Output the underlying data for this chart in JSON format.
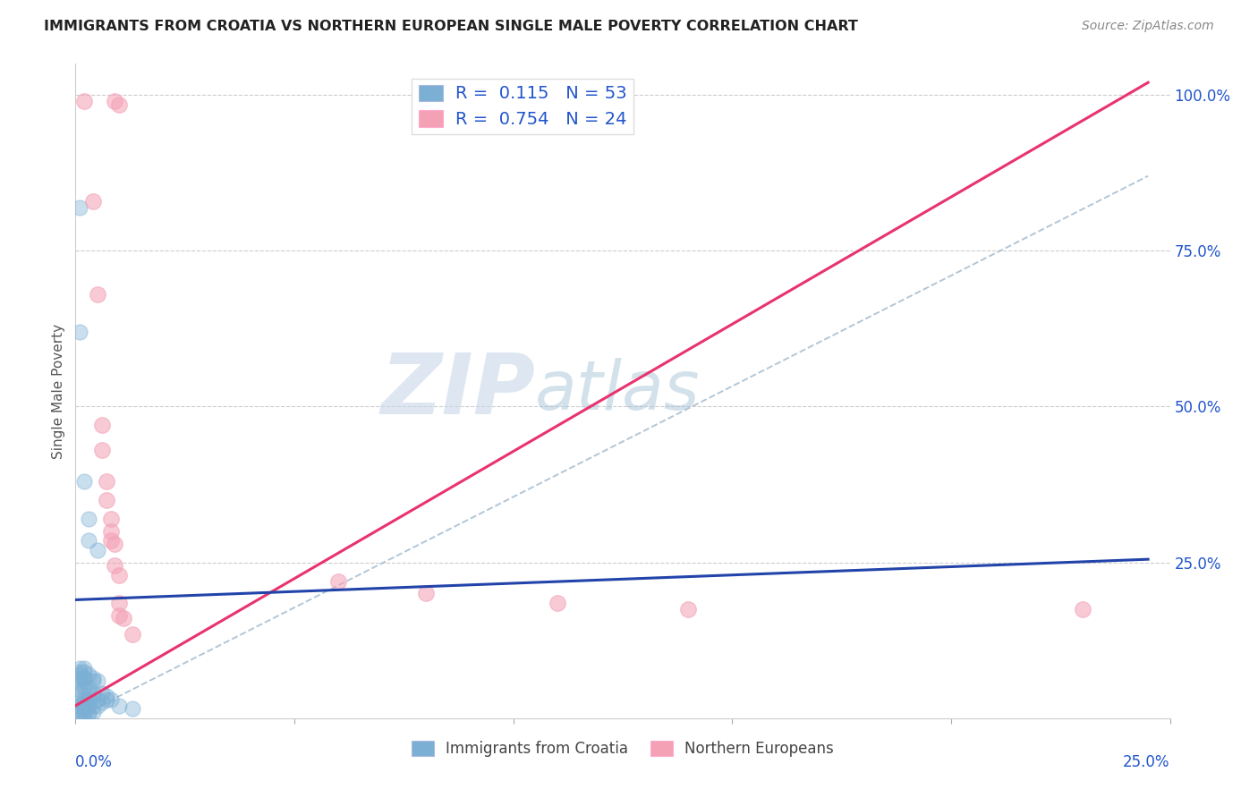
{
  "title": "IMMIGRANTS FROM CROATIA VS NORTHERN EUROPEAN SINGLE MALE POVERTY CORRELATION CHART",
  "source": "Source: ZipAtlas.com",
  "ylabel": "Single Male Poverty",
  "blue_R": 0.115,
  "blue_N": 53,
  "pink_R": 0.754,
  "pink_N": 24,
  "watermark_ZIP": "ZIP",
  "watermark_atlas": "atlas",
  "blue_scatter": [
    [
      0.001,
      0.02
    ],
    [
      0.001,
      0.015
    ],
    [
      0.001,
      0.01
    ],
    [
      0.001,
      0.005
    ],
    [
      0.001,
      0.03
    ],
    [
      0.001,
      0.04
    ],
    [
      0.001,
      0.045
    ],
    [
      0.001,
      0.055
    ],
    [
      0.001,
      0.065
    ],
    [
      0.001,
      0.07
    ],
    [
      0.001,
      0.075
    ],
    [
      0.001,
      0.08
    ],
    [
      0.002,
      0.005
    ],
    [
      0.002,
      0.01
    ],
    [
      0.002,
      0.015
    ],
    [
      0.002,
      0.02
    ],
    [
      0.002,
      0.025
    ],
    [
      0.002,
      0.03
    ],
    [
      0.002,
      0.05
    ],
    [
      0.002,
      0.06
    ],
    [
      0.002,
      0.065
    ],
    [
      0.002,
      0.075
    ],
    [
      0.002,
      0.08
    ],
    [
      0.003,
      0.005
    ],
    [
      0.003,
      0.01
    ],
    [
      0.003,
      0.02
    ],
    [
      0.003,
      0.025
    ],
    [
      0.003,
      0.03
    ],
    [
      0.003,
      0.035
    ],
    [
      0.003,
      0.05
    ],
    [
      0.003,
      0.07
    ],
    [
      0.004,
      0.01
    ],
    [
      0.004,
      0.02
    ],
    [
      0.004,
      0.035
    ],
    [
      0.004,
      0.04
    ],
    [
      0.004,
      0.06
    ],
    [
      0.004,
      0.065
    ],
    [
      0.005,
      0.02
    ],
    [
      0.005,
      0.03
    ],
    [
      0.005,
      0.06
    ],
    [
      0.006,
      0.025
    ],
    [
      0.006,
      0.04
    ],
    [
      0.007,
      0.03
    ],
    [
      0.007,
      0.035
    ],
    [
      0.008,
      0.03
    ],
    [
      0.01,
      0.02
    ],
    [
      0.013,
      0.015
    ],
    [
      0.001,
      0.82
    ],
    [
      0.001,
      0.62
    ],
    [
      0.002,
      0.38
    ],
    [
      0.003,
      0.32
    ],
    [
      0.003,
      0.285
    ],
    [
      0.005,
      0.27
    ]
  ],
  "pink_scatter": [
    [
      0.002,
      0.99
    ],
    [
      0.009,
      0.99
    ],
    [
      0.01,
      0.985
    ],
    [
      0.004,
      0.83
    ],
    [
      0.005,
      0.68
    ],
    [
      0.006,
      0.47
    ],
    [
      0.006,
      0.43
    ],
    [
      0.007,
      0.38
    ],
    [
      0.007,
      0.35
    ],
    [
      0.008,
      0.32
    ],
    [
      0.008,
      0.3
    ],
    [
      0.008,
      0.285
    ],
    [
      0.009,
      0.28
    ],
    [
      0.009,
      0.245
    ],
    [
      0.01,
      0.23
    ],
    [
      0.01,
      0.185
    ],
    [
      0.01,
      0.165
    ],
    [
      0.011,
      0.16
    ],
    [
      0.013,
      0.135
    ],
    [
      0.06,
      0.22
    ],
    [
      0.08,
      0.2
    ],
    [
      0.11,
      0.185
    ],
    [
      0.14,
      0.175
    ],
    [
      0.23,
      0.175
    ]
  ],
  "pink_line_x": [
    0.0,
    0.245
  ],
  "pink_line_y": [
    0.02,
    1.02
  ],
  "blue_line_x": [
    0.0,
    0.245
  ],
  "blue_line_y": [
    0.19,
    0.255
  ],
  "dashed_line_x": [
    0.0,
    0.245
  ],
  "dashed_line_y": [
    0.0,
    0.87
  ],
  "xlim": [
    0.0,
    0.25
  ],
  "ylim": [
    0.0,
    1.05
  ],
  "background_color": "#ffffff",
  "blue_color": "#7bafd4",
  "pink_color": "#f4a0b5",
  "blue_line_color": "#2244aa",
  "pink_line_color": "#e8336e",
  "dashed_line_color": "#a0b8cc",
  "grid_color": "#cccccc",
  "title_color": "#222222",
  "axis_label_color": "#2255cc",
  "source_color": "#888888"
}
